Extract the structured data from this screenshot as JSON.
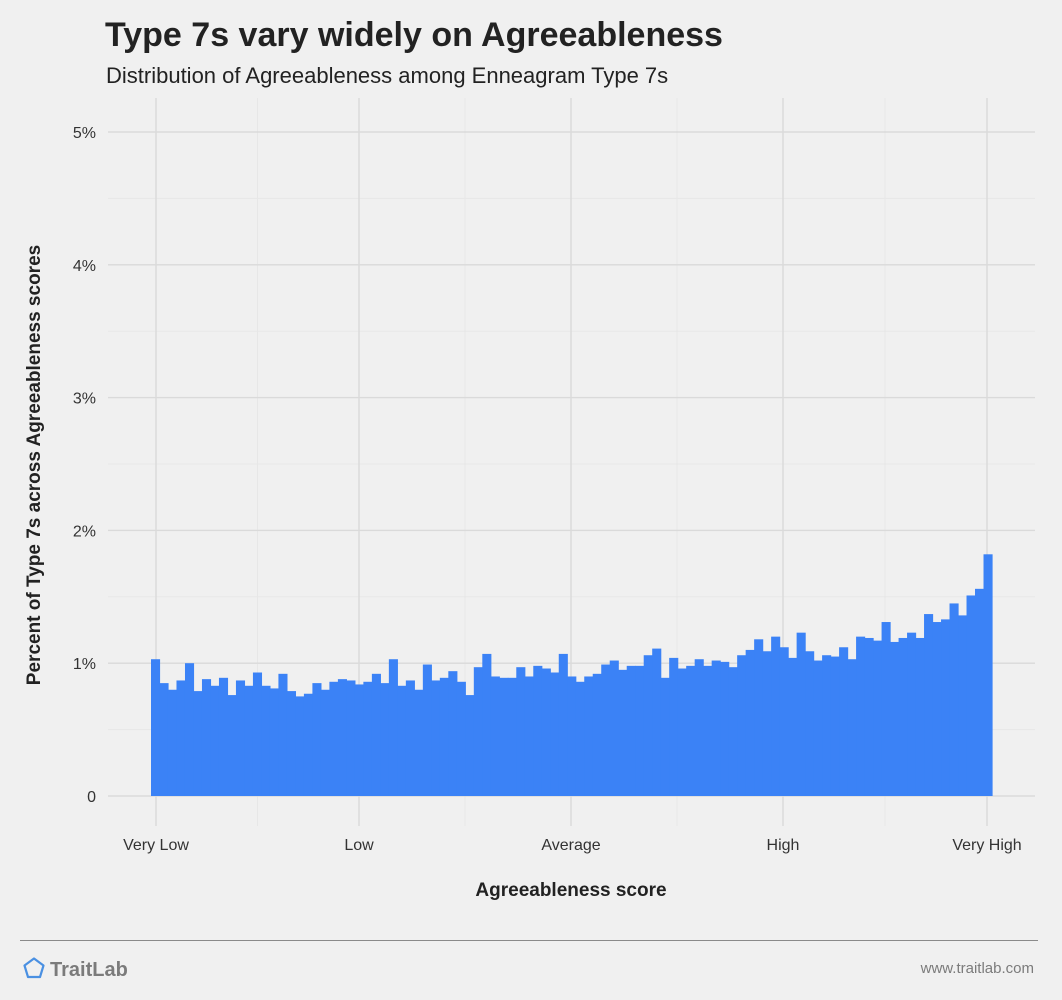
{
  "header": {
    "title": "Type 7s vary widely on Agreeableness",
    "subtitle": "Distribution of Agreeableness among Enneagram Type 7s"
  },
  "footer": {
    "brand": "TraitLab",
    "website": "www.traitlab.com",
    "brand_icon": "pentagon-logo-icon"
  },
  "colors": {
    "bar": "#3b82f6",
    "background": "#f0f0f0",
    "grid": "#dadada",
    "brand_icon": "#4a90e2"
  },
  "chart_data": {
    "type": "bar",
    "title": "Type 7s vary widely on Agreeableness",
    "subtitle": "Distribution of Agreeableness among Enneagram Type 7s",
    "xlabel": "Agreeableness score",
    "ylabel": "Percent of Type 7s across Agreeableness scores",
    "x_tick_labels": [
      "Very Low",
      "Low",
      "Average",
      "High",
      "Very High"
    ],
    "y_tick_labels": [
      "0",
      "1%",
      "2%",
      "3%",
      "4%",
      "5%"
    ],
    "y_ticks": [
      0,
      1,
      2,
      3,
      4,
      5
    ],
    "ylim": [
      0,
      5
    ],
    "grid": true,
    "legend": "none",
    "values": [
      1.03,
      0.85,
      0.8,
      0.87,
      1.0,
      0.79,
      0.88,
      0.83,
      0.89,
      0.76,
      0.87,
      0.83,
      0.93,
      0.83,
      0.81,
      0.92,
      0.79,
      0.75,
      0.77,
      0.85,
      0.8,
      0.86,
      0.88,
      0.87,
      0.84,
      0.86,
      0.92,
      0.85,
      1.03,
      0.83,
      0.87,
      0.8,
      0.99,
      0.87,
      0.89,
      0.94,
      0.86,
      0.76,
      0.97,
      1.07,
      0.9,
      0.89,
      0.89,
      0.97,
      0.9,
      0.98,
      0.96,
      0.93,
      1.07,
      0.9,
      0.86,
      0.9,
      0.92,
      0.99,
      1.02,
      0.95,
      0.98,
      0.98,
      1.06,
      1.11,
      0.89,
      1.04,
      0.96,
      0.98,
      1.03,
      0.98,
      1.02,
      1.01,
      0.97,
      1.06,
      1.1,
      1.18,
      1.09,
      1.2,
      1.12,
      1.04,
      1.23,
      1.09,
      1.02,
      1.06,
      1.05,
      1.12,
      1.03,
      1.2,
      1.19,
      1.17,
      1.31,
      1.16,
      1.19,
      1.23,
      1.19,
      1.37,
      1.31,
      1.33,
      1.45,
      1.36,
      1.51,
      1.56,
      1.82
    ]
  }
}
